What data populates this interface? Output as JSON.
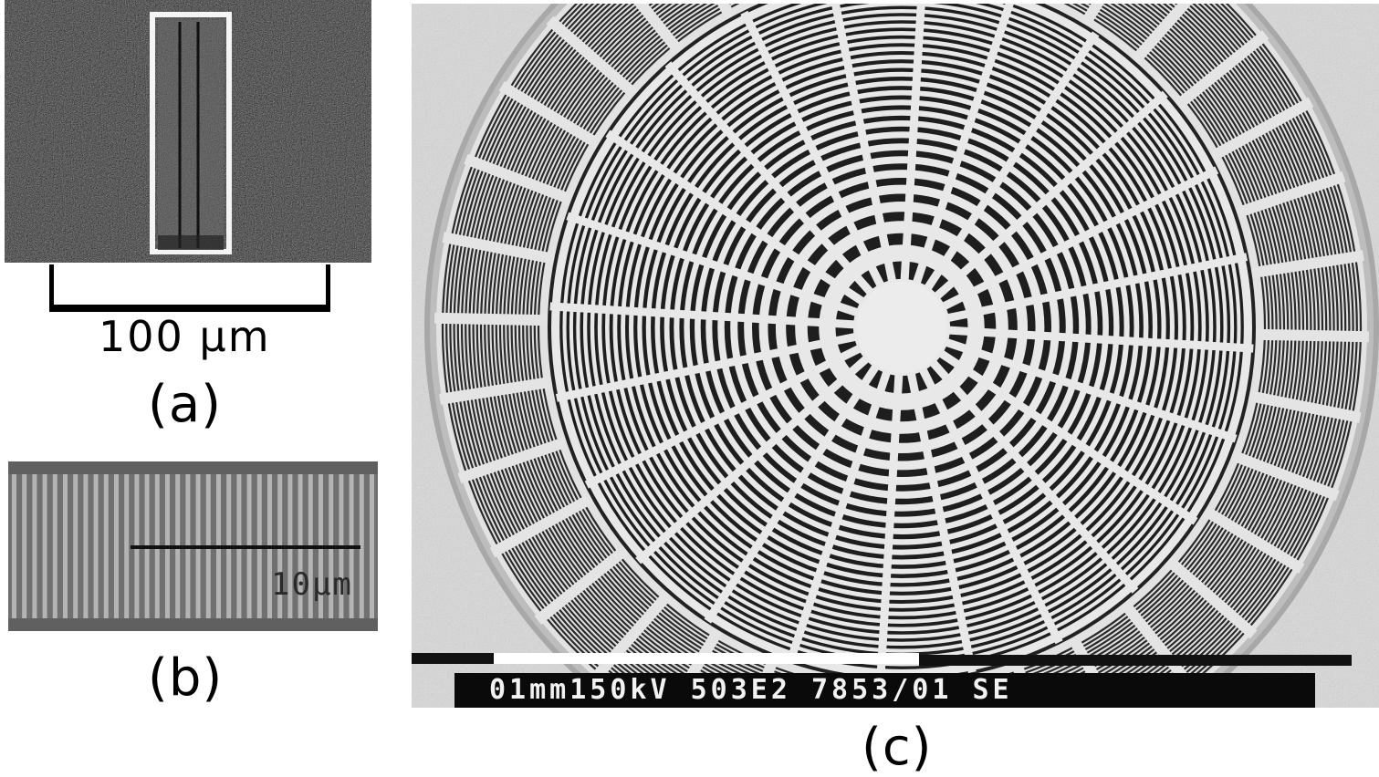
{
  "figure": {
    "panels": [
      {
        "id": "a",
        "caption": "(a)",
        "scale_bar_label": "100 μm",
        "content": "sem-slit-micrograph"
      },
      {
        "id": "b",
        "caption": "(b)",
        "scale_bar_label": "10μm",
        "content": "line-grating-micrograph"
      },
      {
        "id": "c",
        "caption": "(c)",
        "info_bar_text": "01mm150kV 503E2 7853/01 SE",
        "content": "zone-plate-micrograph"
      }
    ]
  },
  "colors": {
    "background": "#ffffff",
    "sem_dark": "#2b2b2b",
    "sem_light": "#e6e6e6",
    "grating_gray": "#8a8a8a"
  }
}
